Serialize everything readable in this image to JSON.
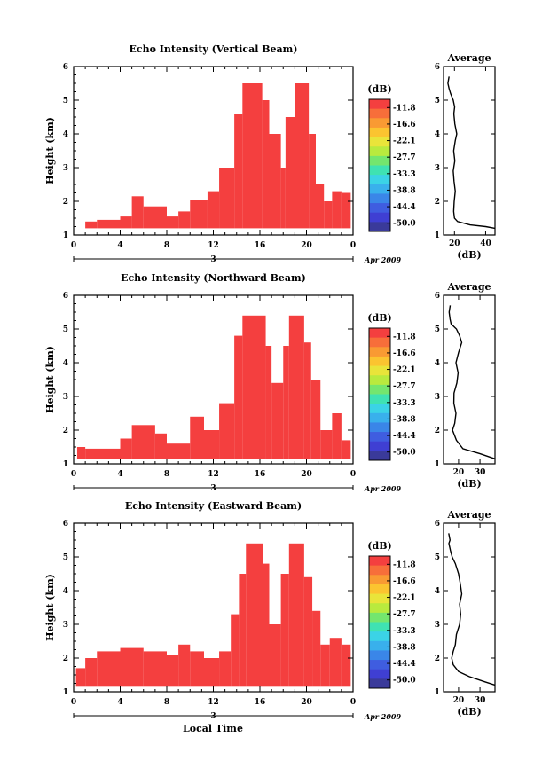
{
  "colors": {
    "echo": "#f43f3f",
    "colorbar": [
      "#f43f3f",
      "#f76e3a",
      "#f99a33",
      "#fbc430",
      "#e9e43a",
      "#b9ea3e",
      "#74e66e",
      "#3fe2b2",
      "#3bd3e6",
      "#39b0ec",
      "#3a86e8",
      "#3f5de0",
      "#3f3fd3",
      "#3a3a9a"
    ]
  },
  "footer": {
    "xlabel": "Local Time"
  },
  "chart_data": [
    {
      "type": "heatmap",
      "title": "Echo Intensity (Vertical Beam)",
      "ylabel": "Height (km)",
      "ylim": [
        1,
        6
      ],
      "yticks": [
        "1",
        "2",
        "3",
        "4",
        "5",
        "6"
      ],
      "xlim": [
        0,
        24
      ],
      "xticks": [
        "0",
        "4",
        "8",
        "12",
        "16",
        "20",
        "0"
      ],
      "day_label": "3",
      "date_label": "Apr 2009",
      "colorbar": {
        "unit": "(dB)",
        "labels": [
          "-11.8",
          "-16.6",
          "-22.1",
          "-27.7",
          "-33.3",
          "-38.8",
          "-44.4",
          "-50.0"
        ]
      },
      "echo_columns": [
        {
          "x0": 1.0,
          "x1": 2.0,
          "y0": 1.2,
          "y1": 1.4
        },
        {
          "x0": 2.0,
          "x1": 4.0,
          "y0": 1.2,
          "y1": 1.45
        },
        {
          "x0": 4.0,
          "x1": 5.0,
          "y0": 1.2,
          "y1": 1.55
        },
        {
          "x0": 5.0,
          "x1": 6.0,
          "y0": 1.2,
          "y1": 2.15
        },
        {
          "x0": 6.0,
          "x1": 8.0,
          "y0": 1.2,
          "y1": 1.85
        },
        {
          "x0": 8.0,
          "x1": 9.0,
          "y0": 1.2,
          "y1": 1.55
        },
        {
          "x0": 9.0,
          "x1": 10.0,
          "y0": 1.2,
          "y1": 1.7
        },
        {
          "x0": 10.0,
          "x1": 11.5,
          "y0": 1.2,
          "y1": 2.05
        },
        {
          "x0": 11.5,
          "x1": 12.5,
          "y0": 1.2,
          "y1": 2.3
        },
        {
          "x0": 12.5,
          "x1": 13.8,
          "y0": 1.2,
          "y1": 3.0
        },
        {
          "x0": 13.8,
          "x1": 14.5,
          "y0": 1.2,
          "y1": 4.6
        },
        {
          "x0": 14.5,
          "x1": 15.2,
          "y0": 1.2,
          "y1": 5.5
        },
        {
          "x0": 15.2,
          "x1": 16.2,
          "y0": 1.2,
          "y1": 5.5
        },
        {
          "x0": 16.2,
          "x1": 16.8,
          "y0": 1.2,
          "y1": 5.0
        },
        {
          "x0": 16.8,
          "x1": 17.8,
          "y0": 1.2,
          "y1": 4.0
        },
        {
          "x0": 17.8,
          "x1": 18.2,
          "y0": 1.2,
          "y1": 3.0
        },
        {
          "x0": 18.2,
          "x1": 19.0,
          "y0": 1.2,
          "y1": 4.5
        },
        {
          "x0": 19.0,
          "x1": 20.2,
          "y0": 1.2,
          "y1": 5.5
        },
        {
          "x0": 20.2,
          "x1": 20.8,
          "y0": 1.2,
          "y1": 4.0
        },
        {
          "x0": 20.8,
          "x1": 21.5,
          "y0": 1.2,
          "y1": 2.5
        },
        {
          "x0": 21.5,
          "x1": 22.2,
          "y0": 1.2,
          "y1": 2.0
        },
        {
          "x0": 22.2,
          "x1": 23.0,
          "y0": 1.2,
          "y1": 2.3
        },
        {
          "x0": 23.0,
          "x1": 23.8,
          "y0": 1.2,
          "y1": 2.25
        }
      ],
      "average_profile": {
        "title": "Average",
        "xlabel": "(dB)",
        "xticks": [
          "20",
          "40"
        ],
        "xlim": [
          13,
          46
        ],
        "yticks": [
          "1",
          "2",
          "3",
          "4",
          "5",
          "6"
        ],
        "ylim": [
          1,
          6
        ],
        "points": [
          [
            46,
            1.2
          ],
          [
            40,
            1.25
          ],
          [
            30,
            1.3
          ],
          [
            22,
            1.4
          ],
          [
            20,
            1.5
          ],
          [
            19.5,
            1.7
          ],
          [
            19.8,
            2.0
          ],
          [
            20.5,
            2.3
          ],
          [
            19.7,
            2.6
          ],
          [
            19.2,
            2.9
          ],
          [
            20.2,
            3.2
          ],
          [
            19.5,
            3.5
          ],
          [
            20.5,
            3.8
          ],
          [
            21.5,
            4.0
          ],
          [
            20.2,
            4.3
          ],
          [
            19.6,
            4.6
          ],
          [
            20.1,
            4.8
          ],
          [
            19.2,
            5.0
          ],
          [
            17.5,
            5.2
          ],
          [
            16.5,
            5.35
          ],
          [
            15.8,
            5.5
          ],
          [
            16.5,
            5.7
          ]
        ]
      }
    },
    {
      "type": "heatmap",
      "title": "Echo Intensity (Northward Beam)",
      "ylabel": "Height (km)",
      "ylim": [
        1,
        6
      ],
      "yticks": [
        "1",
        "2",
        "3",
        "4",
        "5",
        "6"
      ],
      "xlim": [
        0,
        24
      ],
      "xticks": [
        "0",
        "4",
        "8",
        "12",
        "16",
        "20",
        "0"
      ],
      "day_label": "3",
      "date_label": "Apr 2009",
      "colorbar": {
        "unit": "(dB)",
        "labels": [
          "-11.8",
          "-16.6",
          "-22.1",
          "-27.7",
          "-33.3",
          "-38.8",
          "-44.4",
          "-50.0"
        ]
      },
      "echo_columns": [
        {
          "x0": 0.3,
          "x1": 1.0,
          "y0": 1.15,
          "y1": 1.5
        },
        {
          "x0": 1.0,
          "x1": 4.0,
          "y0": 1.15,
          "y1": 1.45
        },
        {
          "x0": 4.0,
          "x1": 5.0,
          "y0": 1.15,
          "y1": 1.75
        },
        {
          "x0": 5.0,
          "x1": 7.0,
          "y0": 1.15,
          "y1": 2.15
        },
        {
          "x0": 7.0,
          "x1": 8.0,
          "y0": 1.15,
          "y1": 1.9
        },
        {
          "x0": 8.0,
          "x1": 10.0,
          "y0": 1.15,
          "y1": 1.6
        },
        {
          "x0": 10.0,
          "x1": 11.2,
          "y0": 1.15,
          "y1": 2.4
        },
        {
          "x0": 11.2,
          "x1": 12.5,
          "y0": 1.15,
          "y1": 2.0
        },
        {
          "x0": 12.5,
          "x1": 13.8,
          "y0": 1.15,
          "y1": 2.8
        },
        {
          "x0": 13.8,
          "x1": 14.5,
          "y0": 1.15,
          "y1": 4.8
        },
        {
          "x0": 14.5,
          "x1": 16.5,
          "y0": 1.15,
          "y1": 5.4
        },
        {
          "x0": 16.5,
          "x1": 17.0,
          "y0": 1.15,
          "y1": 4.5
        },
        {
          "x0": 17.0,
          "x1": 18.0,
          "y0": 1.15,
          "y1": 3.4
        },
        {
          "x0": 18.0,
          "x1": 18.5,
          "y0": 1.15,
          "y1": 4.5
        },
        {
          "x0": 18.5,
          "x1": 19.8,
          "y0": 1.15,
          "y1": 5.4
        },
        {
          "x0": 19.8,
          "x1": 20.4,
          "y0": 1.15,
          "y1": 4.6
        },
        {
          "x0": 20.4,
          "x1": 21.2,
          "y0": 1.15,
          "y1": 3.5
        },
        {
          "x0": 21.2,
          "x1": 22.2,
          "y0": 1.15,
          "y1": 2.0
        },
        {
          "x0": 22.2,
          "x1": 23.0,
          "y0": 1.15,
          "y1": 2.5
        },
        {
          "x0": 23.0,
          "x1": 23.8,
          "y0": 1.15,
          "y1": 1.7
        }
      ],
      "average_profile": {
        "title": "Average",
        "xlabel": "(dB)",
        "xticks": [
          "20",
          "30"
        ],
        "xlim": [
          13,
          37
        ],
        "yticks": [
          "1",
          "2",
          "3",
          "4",
          "5",
          "6"
        ],
        "ylim": [
          1,
          6
        ],
        "points": [
          [
            37,
            1.15
          ],
          [
            30,
            1.3
          ],
          [
            22,
            1.45
          ],
          [
            19,
            1.7
          ],
          [
            17.2,
            2.0
          ],
          [
            18.2,
            2.2
          ],
          [
            18.8,
            2.5
          ],
          [
            17.8,
            2.8
          ],
          [
            17.9,
            3.1
          ],
          [
            19.2,
            3.4
          ],
          [
            19.8,
            3.7
          ],
          [
            18.8,
            4.0
          ],
          [
            20,
            4.3
          ],
          [
            21.5,
            4.6
          ],
          [
            20.5,
            4.8
          ],
          [
            19,
            5.0
          ],
          [
            16.5,
            5.15
          ],
          [
            16,
            5.3
          ],
          [
            15.6,
            5.5
          ],
          [
            16.1,
            5.7
          ]
        ]
      }
    },
    {
      "type": "heatmap",
      "title": "Echo Intensity (Eastward Beam)",
      "ylabel": "Height (km)",
      "ylim": [
        1,
        6
      ],
      "yticks": [
        "1",
        "2",
        "3",
        "4",
        "5",
        "6"
      ],
      "xlim": [
        0,
        24
      ],
      "xticks": [
        "0",
        "4",
        "8",
        "12",
        "16",
        "20",
        "0"
      ],
      "day_label": "3",
      "date_label": "Apr 2009",
      "colorbar": {
        "unit": "(dB)",
        "labels": [
          "-11.8",
          "-16.6",
          "-22.1",
          "-27.7",
          "-33.3",
          "-38.8",
          "-44.4",
          "-50.0"
        ]
      },
      "echo_columns": [
        {
          "x0": 0.2,
          "x1": 1.0,
          "y0": 1.15,
          "y1": 1.7
        },
        {
          "x0": 1.0,
          "x1": 2.0,
          "y0": 1.15,
          "y1": 2.0
        },
        {
          "x0": 2.0,
          "x1": 4.0,
          "y0": 1.15,
          "y1": 2.2
        },
        {
          "x0": 4.0,
          "x1": 6.0,
          "y0": 1.15,
          "y1": 2.3
        },
        {
          "x0": 6.0,
          "x1": 8.0,
          "y0": 1.15,
          "y1": 2.2
        },
        {
          "x0": 8.0,
          "x1": 9.0,
          "y0": 1.15,
          "y1": 2.1
        },
        {
          "x0": 9.0,
          "x1": 10.0,
          "y0": 1.15,
          "y1": 2.4
        },
        {
          "x0": 10.0,
          "x1": 11.2,
          "y0": 1.15,
          "y1": 2.2
        },
        {
          "x0": 11.2,
          "x1": 12.5,
          "y0": 1.15,
          "y1": 2.0
        },
        {
          "x0": 12.5,
          "x1": 13.5,
          "y0": 1.15,
          "y1": 2.2
        },
        {
          "x0": 13.5,
          "x1": 14.2,
          "y0": 1.15,
          "y1": 3.3
        },
        {
          "x0": 14.2,
          "x1": 14.8,
          "y0": 1.15,
          "y1": 4.5
        },
        {
          "x0": 14.8,
          "x1": 16.3,
          "y0": 1.15,
          "y1": 5.4
        },
        {
          "x0": 16.3,
          "x1": 16.8,
          "y0": 1.15,
          "y1": 4.8
        },
        {
          "x0": 16.8,
          "x1": 17.8,
          "y0": 1.15,
          "y1": 3.0
        },
        {
          "x0": 17.8,
          "x1": 18.5,
          "y0": 1.15,
          "y1": 4.5
        },
        {
          "x0": 18.5,
          "x1": 19.8,
          "y0": 1.15,
          "y1": 5.4
        },
        {
          "x0": 19.8,
          "x1": 20.5,
          "y0": 1.15,
          "y1": 4.4
        },
        {
          "x0": 20.5,
          "x1": 21.2,
          "y0": 1.15,
          "y1": 3.4
        },
        {
          "x0": 21.2,
          "x1": 22.0,
          "y0": 1.15,
          "y1": 2.4
        },
        {
          "x0": 22.0,
          "x1": 23.0,
          "y0": 1.15,
          "y1": 2.6
        },
        {
          "x0": 23.0,
          "x1": 23.8,
          "y0": 1.15,
          "y1": 2.4
        }
      ],
      "average_profile": {
        "title": "Average",
        "xlabel": "(dB)",
        "xticks": [
          "20",
          "30"
        ],
        "xlim": [
          13,
          37
        ],
        "yticks": [
          "1",
          "2",
          "3",
          "4",
          "5",
          "6"
        ],
        "ylim": [
          1,
          6
        ],
        "points": [
          [
            37,
            1.2
          ],
          [
            32,
            1.3
          ],
          [
            25,
            1.45
          ],
          [
            20,
            1.6
          ],
          [
            17.5,
            1.8
          ],
          [
            16.8,
            2.0
          ],
          [
            17.5,
            2.2
          ],
          [
            18.5,
            2.4
          ],
          [
            19,
            2.7
          ],
          [
            20.5,
            3.0
          ],
          [
            21,
            3.3
          ],
          [
            20.5,
            3.6
          ],
          [
            21.5,
            3.9
          ],
          [
            20.8,
            4.2
          ],
          [
            20,
            4.5
          ],
          [
            18.5,
            4.8
          ],
          [
            17,
            5.0
          ],
          [
            16.2,
            5.2
          ],
          [
            15.5,
            5.4
          ],
          [
            16,
            5.5
          ],
          [
            15.4,
            5.7
          ]
        ]
      }
    }
  ]
}
